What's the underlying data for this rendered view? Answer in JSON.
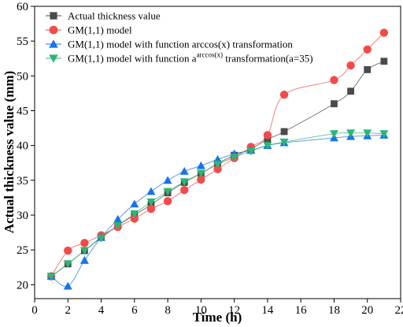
{
  "chart_data": {
    "type": "line",
    "title": "",
    "xlabel": "Time (h)",
    "ylabel": "Actual thickness value (mm)",
    "xlim": [
      0,
      22
    ],
    "ylim": [
      18,
      60
    ],
    "xticks": [
      0,
      2,
      4,
      6,
      8,
      10,
      12,
      14,
      16,
      18,
      20,
      22
    ],
    "yticks": [
      20,
      25,
      30,
      35,
      40,
      45,
      50,
      55,
      60
    ],
    "grid": false,
    "legend_position": "top-left",
    "series": [
      {
        "name": "Actual thickness value",
        "marker": "square",
        "color": "#4a4a4a",
        "x": [
          1,
          2,
          3,
          4,
          5,
          6,
          7,
          8,
          9,
          10,
          11,
          12,
          13,
          14,
          15,
          18,
          19,
          20,
          21
        ],
        "values": [
          21.2,
          23.0,
          24.9,
          26.8,
          28.5,
          30.0,
          31.5,
          33.2,
          34.7,
          36.0,
          37.4,
          38.6,
          39.5,
          40.9,
          42.0,
          46.0,
          47.8,
          50.9,
          52.1
        ]
      },
      {
        "name": "GM(1,1) model",
        "marker": "circle",
        "color": "#f24b4b",
        "x": [
          1,
          2,
          3,
          4,
          5,
          6,
          7,
          8,
          9,
          10,
          11,
          12,
          13,
          14,
          15,
          18,
          19,
          20,
          21
        ],
        "values": [
          21.2,
          24.9,
          26.0,
          27.1,
          28.3,
          29.5,
          30.9,
          32.0,
          33.6,
          35.1,
          36.6,
          38.2,
          39.8,
          41.5,
          47.3,
          49.4,
          51.5,
          53.8,
          56.2
        ]
      },
      {
        "name_parts": [
          "GM(1,1) model with function arccos(x) transformation"
        ],
        "name": "GM(1,1) model with function arccos(x) transformation",
        "marker": "triangle-up",
        "color": "#1a73e8",
        "x": [
          1,
          2,
          3,
          4,
          5,
          6,
          7,
          8,
          9,
          10,
          11,
          12,
          13,
          14,
          15,
          18,
          19,
          20,
          21
        ],
        "values": [
          21.2,
          19.8,
          23.5,
          26.8,
          29.4,
          31.6,
          33.4,
          35.0,
          36.3,
          37.1,
          38.0,
          38.8,
          39.3,
          40.0,
          40.4,
          41.1,
          41.3,
          41.4,
          41.5
        ]
      },
      {
        "name_parts": [
          "GM(1,1) model with function a",
          "arccos(x)",
          " transformation(a=35)"
        ],
        "name": "GM(1,1) model with function a^arccos(x) transformation(a=35)",
        "marker": "triangle-down",
        "color": "#2bb673",
        "x": [
          1,
          2,
          3,
          4,
          5,
          6,
          7,
          8,
          9,
          10,
          11,
          12,
          13,
          14,
          15,
          18,
          19,
          20,
          21
        ],
        "values": [
          21.2,
          23.0,
          24.9,
          26.7,
          28.5,
          30.2,
          31.9,
          33.4,
          34.8,
          36.0,
          37.3,
          38.3,
          39.2,
          40.0,
          40.5,
          41.7,
          41.8,
          41.8,
          41.7
        ]
      }
    ]
  }
}
